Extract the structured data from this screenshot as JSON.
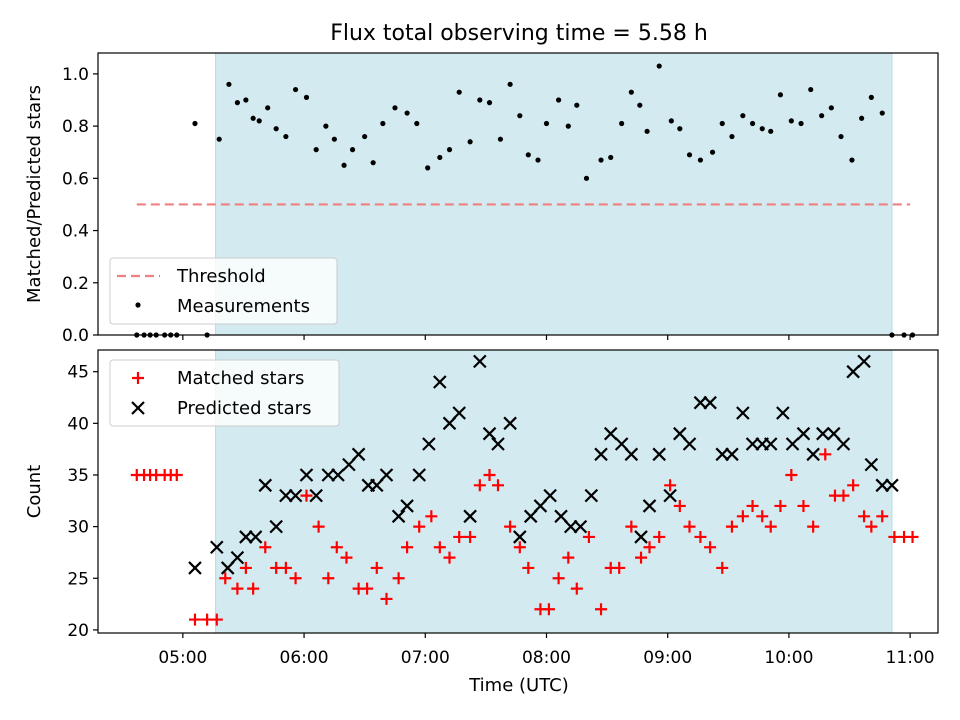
{
  "figure": {
    "title": "Flux total observing time = 5.58 h",
    "xlabel": "Time (UTC)",
    "x_ticks": [
      "05:00",
      "06:00",
      "07:00",
      "08:00",
      "09:00",
      "10:00",
      "11:00"
    ],
    "x_tick_hours": [
      5,
      6,
      7,
      8,
      9,
      10,
      11
    ],
    "x_range_hours": [
      4.3,
      11.23
    ],
    "observing_window_hours": [
      5.27,
      10.85
    ],
    "window_color": "#d3eaf1"
  },
  "chart_data": [
    {
      "type": "scatter",
      "ylabel": "Matched/Predicted stars",
      "ylim": [
        0.0,
        1.08
      ],
      "y_ticks": [
        0.0,
        0.2,
        0.4,
        0.6,
        0.8,
        1.0
      ],
      "y_tick_labels": [
        "0.0",
        "0.2",
        "0.4",
        "0.6",
        "0.8",
        "1.0"
      ],
      "legend_position": "lower-left",
      "threshold": {
        "name": "Threshold",
        "value": 0.5,
        "x_range": [
          4.62,
          11.0
        ],
        "color": "#f08080"
      },
      "series": [
        {
          "name": "Measurements",
          "color": "#000000",
          "marker": "dot",
          "x": [
            4.62,
            4.68,
            4.73,
            4.78,
            4.85,
            4.9,
            4.95,
            5.1,
            5.2,
            5.3,
            5.38,
            5.45,
            5.52,
            5.58,
            5.63,
            5.7,
            5.77,
            5.85,
            5.93,
            6.02,
            6.1,
            6.18,
            6.25,
            6.33,
            6.4,
            6.5,
            6.57,
            6.65,
            6.75,
            6.85,
            6.93,
            7.02,
            7.12,
            7.2,
            7.28,
            7.37,
            7.45,
            7.53,
            7.62,
            7.7,
            7.78,
            7.85,
            7.93,
            8.0,
            8.1,
            8.18,
            8.25,
            8.33,
            8.45,
            8.53,
            8.62,
            8.7,
            8.77,
            8.83,
            8.93,
            9.03,
            9.1,
            9.18,
            9.27,
            9.37,
            9.45,
            9.53,
            9.62,
            9.7,
            9.78,
            9.85,
            9.93,
            10.02,
            10.1,
            10.18,
            10.27,
            10.35,
            10.43,
            10.52,
            10.6,
            10.68,
            10.77,
            10.85,
            10.95,
            11.02
          ],
          "y": [
            0,
            0,
            0,
            0,
            0,
            0,
            0,
            0.81,
            0,
            0.75,
            0.96,
            0.89,
            0.9,
            0.83,
            0.82,
            0.87,
            0.79,
            0.76,
            0.94,
            0.91,
            0.71,
            0.8,
            0.75,
            0.65,
            0.71,
            0.76,
            0.66,
            0.81,
            0.87,
            0.85,
            0.81,
            0.64,
            0.68,
            0.71,
            0.93,
            0.74,
            0.9,
            0.89,
            0.75,
            0.96,
            0.84,
            0.69,
            0.67,
            0.81,
            0.9,
            0.8,
            0.88,
            0.6,
            0.67,
            0.68,
            0.81,
            0.93,
            0.88,
            0.78,
            1.03,
            0.82,
            0.79,
            0.69,
            0.67,
            0.7,
            0.81,
            0.76,
            0.84,
            0.81,
            0.79,
            0.78,
            0.92,
            0.82,
            0.81,
            0.94,
            0.84,
            0.87,
            0.76,
            0.67,
            0.83,
            0.91,
            0.85,
            0.0,
            0.0,
            0.0
          ]
        }
      ]
    },
    {
      "type": "scatter",
      "ylabel": "Count",
      "ylim": [
        19.7,
        47.1
      ],
      "y_ticks": [
        20,
        25,
        30,
        35,
        40,
        45
      ],
      "y_tick_labels": [
        "20",
        "25",
        "30",
        "35",
        "40",
        "45"
      ],
      "legend_position": "top-left",
      "series": [
        {
          "name": "Matched stars",
          "color": "#ff0000",
          "marker": "plus",
          "x": [
            4.62,
            4.68,
            4.73,
            4.78,
            4.85,
            4.9,
            4.95,
            5.1,
            5.2,
            5.28,
            5.35,
            5.45,
            5.52,
            5.58,
            5.68,
            5.77,
            5.85,
            5.93,
            6.02,
            6.12,
            6.2,
            6.27,
            6.35,
            6.45,
            6.52,
            6.6,
            6.68,
            6.78,
            6.85,
            6.95,
            7.05,
            7.12,
            7.2,
            7.28,
            7.37,
            7.45,
            7.53,
            7.6,
            7.7,
            7.78,
            7.85,
            7.95,
            8.02,
            8.1,
            8.18,
            8.25,
            8.35,
            8.45,
            8.53,
            8.6,
            8.7,
            8.78,
            8.85,
            8.93,
            9.02,
            9.1,
            9.18,
            9.27,
            9.35,
            9.45,
            9.53,
            9.62,
            9.7,
            9.78,
            9.85,
            9.93,
            10.02,
            10.12,
            10.2,
            10.3,
            10.38,
            10.45,
            10.53,
            10.62,
            10.68,
            10.77,
            10.87,
            10.95,
            11.02
          ],
          "y": [
            35,
            35,
            35,
            35,
            35,
            35,
            35,
            21,
            21,
            21,
            25,
            24,
            26,
            24,
            28,
            26,
            26,
            25,
            33,
            30,
            25,
            28,
            27,
            24,
            24,
            26,
            23,
            25,
            28,
            30,
            31,
            28,
            27,
            29,
            29,
            34,
            35,
            34,
            30,
            28,
            26,
            22,
            22,
            25,
            27,
            24,
            29,
            22,
            26,
            26,
            30,
            27,
            28,
            29,
            34,
            32,
            30,
            29,
            28,
            26,
            30,
            31,
            32,
            31,
            30,
            32,
            35,
            32,
            30,
            37,
            33,
            33,
            34,
            31,
            30,
            31,
            29,
            29,
            29
          ]
        },
        {
          "name": "Predicted stars",
          "color": "#000000",
          "marker": "cross",
          "x": [
            5.1,
            5.28,
            5.37,
            5.45,
            5.52,
            5.6,
            5.68,
            5.77,
            5.85,
            5.93,
            6.02,
            6.1,
            6.2,
            6.28,
            6.37,
            6.45,
            6.53,
            6.6,
            6.68,
            6.78,
            6.85,
            6.95,
            7.03,
            7.12,
            7.2,
            7.28,
            7.37,
            7.45,
            7.53,
            7.6,
            7.7,
            7.78,
            7.87,
            7.95,
            8.03,
            8.12,
            8.2,
            8.28,
            8.37,
            8.45,
            8.53,
            8.62,
            8.7,
            8.78,
            8.85,
            8.93,
            9.02,
            9.1,
            9.18,
            9.27,
            9.35,
            9.45,
            9.53,
            9.62,
            9.7,
            9.78,
            9.85,
            9.95,
            10.03,
            10.12,
            10.2,
            10.28,
            10.37,
            10.45,
            10.53,
            10.62,
            10.68,
            10.77,
            10.85
          ],
          "y": [
            26,
            28,
            26,
            27,
            29,
            29,
            34,
            30,
            33,
            33,
            35,
            33,
            35,
            35,
            36,
            37,
            34,
            34,
            35,
            31,
            32,
            35,
            38,
            44,
            40,
            41,
            31,
            46,
            39,
            38,
            40,
            29,
            31,
            32,
            33,
            31,
            30,
            30,
            33,
            37,
            39,
            38,
            37,
            29,
            32,
            37,
            33,
            39,
            38,
            42,
            42,
            37,
            37,
            41,
            38,
            38,
            38,
            41,
            38,
            39,
            37,
            39,
            39,
            38,
            45,
            46,
            36,
            34,
            34
          ]
        }
      ]
    }
  ]
}
